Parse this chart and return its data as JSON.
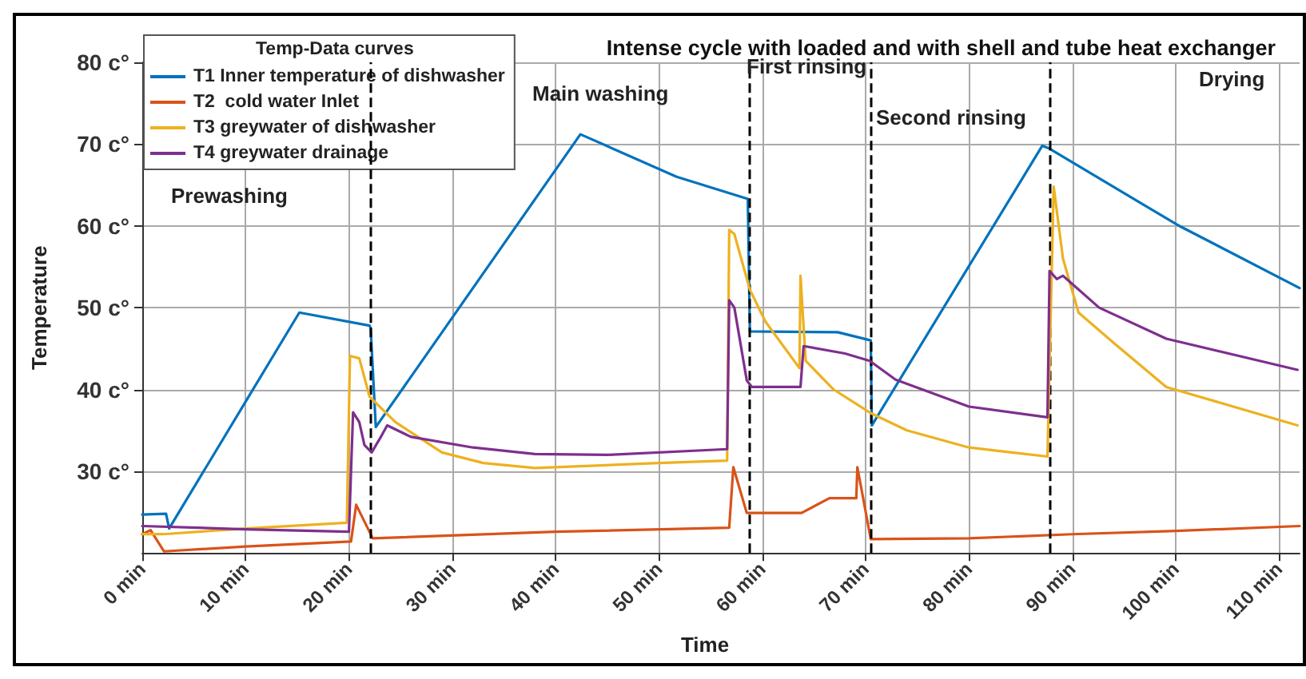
{
  "chart_data": {
    "type": "line",
    "title": "Intense cycle with loaded and with shell and tube heat exchanger",
    "xlabel": "Time",
    "ylabel": "Temperature",
    "legend_title": "Temp-Data curves",
    "xlim": [
      0,
      112
    ],
    "xticks": [
      {
        "value": 0,
        "label": "0 min"
      },
      {
        "value": 10,
        "label": "10 min"
      },
      {
        "value": 20,
        "label": "20 min"
      },
      {
        "value": 30,
        "label": "30 min"
      },
      {
        "value": 40,
        "label": "40 min"
      },
      {
        "value": 50,
        "label": "50 min"
      },
      {
        "value": 60,
        "label": "60 min"
      },
      {
        "value": 70,
        "label": "70 min"
      },
      {
        "value": 80,
        "label": "80 min"
      },
      {
        "value": 90,
        "label": "90 min"
      },
      {
        "value": 100,
        "label": "100 min"
      },
      {
        "value": 110,
        "label": "110 min"
      }
    ],
    "ylim": [
      20,
      80
    ],
    "yticks": [
      {
        "value": 30,
        "label": "30 c°"
      },
      {
        "value": 40,
        "label": "40 c°"
      },
      {
        "value": 50,
        "label": "50 c°"
      },
      {
        "value": 60,
        "label": "60 c°"
      },
      {
        "value": 70,
        "label": "70 c°"
      },
      {
        "value": 80,
        "label": "80 c°"
      }
    ],
    "grid": true,
    "legend": "top left",
    "marker": "none",
    "line_style": "solid",
    "series": [
      {
        "name": "T1 Inner temperature of dishwasher",
        "color": "#0072bd",
        "x": [
          0,
          2.3,
          2.6,
          15.2,
          22.0,
          22.1,
          22.6,
          42.4,
          51.7,
          58.6,
          58.8,
          67.3,
          70.5,
          70.6,
          87.1,
          87.7,
          100.2,
          112
        ],
        "values": [
          24.7,
          24.8,
          23.0,
          49.4,
          47.8,
          47.5,
          35.4,
          71.2,
          66.0,
          63.3,
          47.1,
          47.0,
          46.0,
          35.6,
          69.8,
          69.5,
          60.1,
          52.4
        ]
      },
      {
        "name": "T2  cold water Inlet",
        "color": "#d95319",
        "x": [
          0,
          0.8,
          2.1,
          10,
          20.2,
          20.7,
          22.3,
          40,
          56.8,
          57.2,
          58.5,
          63.8,
          66.5,
          69.1,
          69.2,
          70.5,
          80,
          90,
          100,
          112
        ],
        "values": [
          22.3,
          22.8,
          20.2,
          20.8,
          21.4,
          25.9,
          21.8,
          22.6,
          23.1,
          30.5,
          24.9,
          24.9,
          26.7,
          26.7,
          30.5,
          21.7,
          21.8,
          22.3,
          22.7,
          23.3
        ]
      },
      {
        "name": "T3 greywater of dishwasher",
        "color": "#edb120",
        "x": [
          0,
          2,
          10,
          19.8,
          20.1,
          21,
          22,
          24.5,
          29,
          33,
          38,
          50,
          56.6,
          56.8,
          57.3,
          58.8,
          60.3,
          63.6,
          63.7,
          64.2,
          66.9,
          70.5,
          74,
          80,
          87.6,
          88.2,
          89.1,
          90.6,
          94.1,
          99.1,
          111.8
        ],
        "values": [
          22.3,
          22.3,
          23.0,
          23.7,
          44.1,
          43.8,
          39.1,
          36.0,
          32.3,
          31.0,
          30.4,
          31.0,
          31.3,
          59.5,
          59.0,
          52.2,
          48.3,
          42.6,
          53.9,
          43.5,
          40.0,
          37.1,
          35.0,
          32.9,
          31.8,
          64.8,
          56.0,
          49.4,
          45.6,
          40.3,
          35.6
        ]
      },
      {
        "name": "T4 greywater drainage",
        "color": "#7e2f8e",
        "x": [
          0,
          10,
          20,
          20.4,
          21,
          21.5,
          22.2,
          23,
          23.7,
          26,
          32,
          38,
          45,
          56.6,
          56.8,
          57.3,
          58.5,
          59,
          63.7,
          64,
          68,
          70.4,
          72.9,
          80,
          87.6,
          87.8,
          88.5,
          89.1,
          92.6,
          99.1,
          111.8
        ],
        "values": [
          23.3,
          22.9,
          22.6,
          37.2,
          36.0,
          33.2,
          32.3,
          34.0,
          35.6,
          34.2,
          32.9,
          32.1,
          32.0,
          32.7,
          50.9,
          50.0,
          41.1,
          40.3,
          40.3,
          45.3,
          44.4,
          43.5,
          41.2,
          37.9,
          36.6,
          54.5,
          53.5,
          53.9,
          50.0,
          46.2,
          42.4
        ]
      }
    ],
    "ref_lines": [
      {
        "axis": "x",
        "value": 22.1,
        "color": "#000000",
        "line_style": "dashed"
      },
      {
        "axis": "x",
        "value": 58.8,
        "color": "#000000",
        "line_style": "dashed"
      },
      {
        "axis": "x",
        "value": 70.5,
        "color": "#000000",
        "line_style": "dashed"
      },
      {
        "axis": "x",
        "value": 87.8,
        "color": "#000000",
        "line_style": "dashed"
      }
    ],
    "annotations": [
      "Prewashing",
      "Main washing",
      "First rinsing",
      "Second rinsing",
      "Drying"
    ]
  }
}
